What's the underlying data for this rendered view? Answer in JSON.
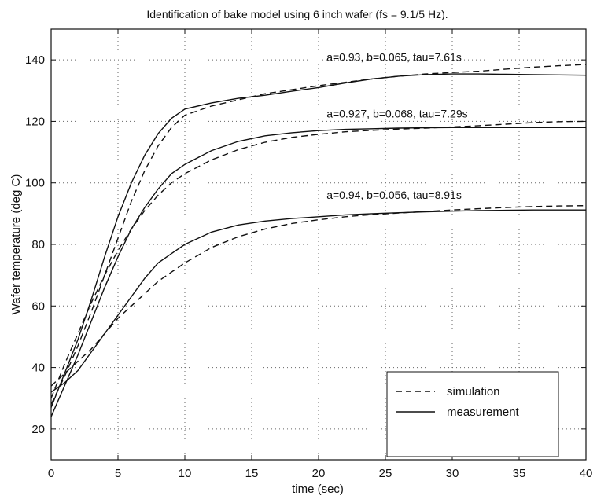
{
  "chart_data": {
    "type": "line",
    "title": "Identification of bake model using 6 inch wafer (fs = 9.1/5 Hz).",
    "xlabel": "time (sec)",
    "ylabel": "Wafer temperature (deg C)",
    "xlim": [
      0,
      40
    ],
    "ylim": [
      10,
      150
    ],
    "xticks": [
      0,
      5,
      10,
      15,
      20,
      25,
      30,
      35,
      40
    ],
    "yticks": [
      20,
      40,
      60,
      80,
      100,
      120,
      140
    ],
    "grid": true,
    "legend": {
      "position": "bottom-right",
      "entries": [
        {
          "label": "simulation",
          "style": "dashed"
        },
        {
          "label": "measurement",
          "style": "solid"
        }
      ]
    },
    "series": [
      {
        "style": "solid",
        "color": "#111111",
        "x": [
          0,
          1,
          2,
          3,
          4,
          5,
          6,
          7,
          8,
          9,
          10,
          12,
          14,
          16,
          18,
          20,
          22,
          24,
          26,
          28,
          30,
          32,
          34,
          36,
          38,
          40
        ],
        "y": [
          27,
          38,
          49,
          62,
          76,
          89,
          100,
          109,
          116,
          121,
          124,
          126,
          127.5,
          128.5,
          129.8,
          131,
          132.5,
          133.8,
          134.7,
          135.2,
          135.4,
          135.4,
          135.3,
          135.2,
          135.1,
          135
        ]
      },
      {
        "style": "dashed",
        "color": "#111111",
        "x": [
          0,
          1,
          2,
          3,
          4,
          5,
          6,
          7,
          8,
          9,
          10,
          12,
          14,
          16,
          18,
          20,
          22,
          24,
          26,
          28,
          30,
          32,
          34,
          36,
          38,
          40
        ],
        "y": [
          28,
          37,
          47,
          58,
          70,
          82,
          94,
          104,
          112,
          118,
          122,
          125,
          127,
          129,
          130.3,
          131.6,
          132.7,
          133.8,
          134.7,
          135.4,
          135.9,
          136.3,
          137,
          137.6,
          138.1,
          138.5
        ]
      },
      {
        "style": "solid",
        "color": "#111111",
        "x": [
          0,
          1,
          2,
          3,
          4,
          5,
          6,
          7,
          8,
          9,
          10,
          12,
          14,
          16,
          18,
          20,
          22,
          24,
          26,
          28,
          30,
          32,
          34,
          36,
          38,
          40
        ],
        "y": [
          24,
          34,
          44,
          55,
          66,
          76,
          85,
          92,
          98,
          103,
          106,
          110.5,
          113.5,
          115.3,
          116.3,
          117,
          117.4,
          117.6,
          117.8,
          117.9,
          118,
          118,
          118,
          118,
          118,
          118
        ]
      },
      {
        "style": "dashed",
        "color": "#111111",
        "x": [
          0,
          1,
          2,
          3,
          4,
          5,
          6,
          7,
          8,
          9,
          10,
          12,
          14,
          16,
          18,
          20,
          22,
          24,
          26,
          28,
          30,
          32,
          34,
          36,
          38,
          40
        ],
        "y": [
          30,
          41,
          51,
          61,
          70,
          78,
          85,
          91,
          96,
          100,
          103,
          107.5,
          110.8,
          113.2,
          114.8,
          115.8,
          116.6,
          117.1,
          117.5,
          117.8,
          118.2,
          118.6,
          119.1,
          119.6,
          119.9,
          120
        ]
      },
      {
        "style": "solid",
        "color": "#111111",
        "x": [
          0,
          1,
          2,
          3,
          4,
          5,
          6,
          7,
          8,
          9,
          10,
          12,
          14,
          16,
          18,
          20,
          22,
          24,
          26,
          28,
          30,
          32,
          34,
          36,
          38,
          40
        ],
        "y": [
          32,
          35,
          39,
          45,
          51,
          57,
          63,
          69,
          74,
          77,
          80,
          84,
          86.3,
          87.6,
          88.4,
          89,
          89.6,
          90,
          90.3,
          90.6,
          90.8,
          91,
          91.1,
          91.2,
          91.2,
          91.2
        ]
      },
      {
        "style": "dashed",
        "color": "#111111",
        "x": [
          0,
          1,
          2,
          3,
          4,
          5,
          6,
          7,
          8,
          9,
          10,
          12,
          14,
          16,
          18,
          20,
          22,
          24,
          26,
          28,
          30,
          32,
          34,
          36,
          38,
          40
        ],
        "y": [
          34,
          38,
          42,
          46,
          51,
          56,
          60,
          64,
          68,
          71,
          74,
          79,
          82.5,
          85,
          86.8,
          88,
          89,
          89.7,
          90.2,
          90.7,
          91.2,
          91.6,
          92,
          92.3,
          92.5,
          92.6
        ]
      }
    ],
    "annotations": [
      {
        "text": "a=0.93, b=0.065, tau=7.61s",
        "x": 20.6,
        "y": 139.6
      },
      {
        "text": "a=0.927, b=0.068, tau=7.29s",
        "x": 20.6,
        "y": 121.2
      },
      {
        "text": "a=0.94, b=0.056, tau=8.91s",
        "x": 20.6,
        "y": 94.8
      }
    ]
  }
}
